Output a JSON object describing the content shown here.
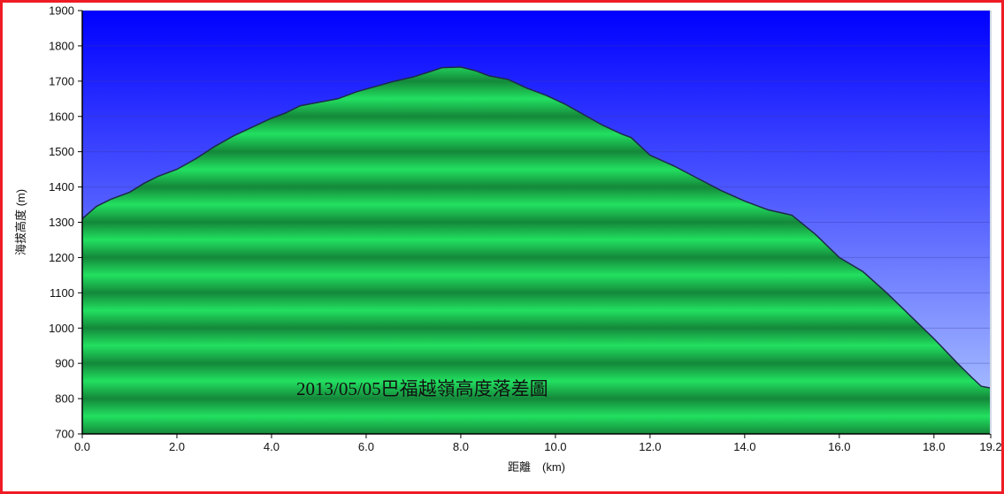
{
  "chart_data": {
    "type": "area",
    "title": "",
    "annotation": "2013/05/05巴福越嶺高度落差圖",
    "xlabel": "距離　(km)",
    "ylabel": "海拔高度 (m)",
    "xlim": [
      0,
      19.2
    ],
    "ylim": [
      700,
      1900
    ],
    "x_ticks": [
      "0.0",
      "2.0",
      "4.0",
      "6.0",
      "8.0",
      "10.0",
      "12.0",
      "14.0",
      "16.0",
      "18.0",
      "19.2"
    ],
    "x_tick_values": [
      0,
      2,
      4,
      6,
      8,
      10,
      12,
      14,
      16,
      18,
      19.2
    ],
    "y_ticks": [
      "700",
      "800",
      "900",
      "1000",
      "1100",
      "1200",
      "1300",
      "1400",
      "1500",
      "1600",
      "1700",
      "1800",
      "1900"
    ],
    "y_tick_values": [
      700,
      800,
      900,
      1000,
      1100,
      1200,
      1300,
      1400,
      1500,
      1600,
      1700,
      1800,
      1900
    ],
    "grid": true,
    "colors": {
      "sky_top": "#0000ff",
      "sky_bottom": "#b5cdff",
      "area_light": "#22e060",
      "area_dark": "#14883a",
      "outline": "#1d2a4a",
      "frame": "#ee1c25"
    },
    "series": [
      {
        "x": [
          0.0,
          0.3,
          0.6,
          1.0,
          1.3,
          1.6,
          2.0,
          2.4,
          2.8,
          3.2,
          3.6,
          4.0,
          4.3,
          4.6,
          5.0,
          5.4,
          5.8,
          6.2,
          6.6,
          7.0,
          7.3,
          7.6,
          8.0,
          8.3,
          8.6,
          9.0,
          9.4,
          9.8,
          10.2,
          10.6,
          11.0,
          11.4,
          11.6,
          11.8,
          12.0,
          12.5,
          13.0,
          13.5,
          14.0,
          14.5,
          15.0,
          15.5,
          16.0,
          16.5,
          17.0,
          17.5,
          18.0,
          18.5,
          18.8,
          19.0,
          19.2
        ],
        "y": [
          1310,
          1345,
          1365,
          1385,
          1410,
          1430,
          1450,
          1480,
          1515,
          1545,
          1570,
          1595,
          1610,
          1630,
          1640,
          1650,
          1670,
          1685,
          1700,
          1712,
          1725,
          1738,
          1740,
          1730,
          1715,
          1705,
          1680,
          1660,
          1635,
          1605,
          1575,
          1550,
          1540,
          1515,
          1490,
          1460,
          1425,
          1390,
          1360,
          1335,
          1320,
          1265,
          1200,
          1160,
          1100,
          1035,
          970,
          900,
          860,
          835,
          830
        ]
      }
    ]
  }
}
